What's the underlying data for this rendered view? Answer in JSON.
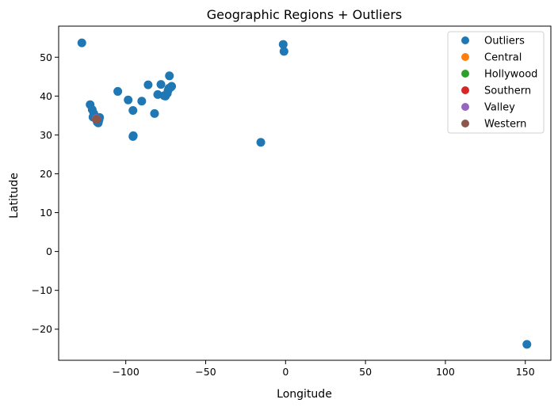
{
  "chart_data": {
    "type": "scatter",
    "title": "Geographic Regions + Outliers",
    "xlabel": "Longitude",
    "ylabel": "Latitude",
    "xlim": [
      -142,
      166
    ],
    "ylim": [
      -28,
      58
    ],
    "x_ticks": [
      -100,
      -50,
      0,
      50,
      100,
      150
    ],
    "y_ticks": [
      -20,
      -10,
      0,
      10,
      20,
      30,
      40,
      50
    ],
    "x_tick_labels": [
      "−100",
      "−50",
      "0",
      "50",
      "100",
      "150"
    ],
    "y_tick_labels": [
      "−20",
      "−10",
      "0",
      "10",
      "20",
      "30",
      "40",
      "50"
    ],
    "grid": false,
    "legend_position": "top-right",
    "series": [
      {
        "name": "Outliers",
        "color": "#1f77b4",
        "points": [
          [
            -127.5,
            53.7
          ],
          [
            -122.3,
            37.8
          ],
          [
            -121.0,
            36.5
          ],
          [
            -120.0,
            35.5
          ],
          [
            -119.5,
            34.8
          ],
          [
            -119.0,
            34.3
          ],
          [
            -118.5,
            34.0
          ],
          [
            -118.0,
            33.7
          ],
          [
            -117.5,
            33.5
          ],
          [
            -117.2,
            33.1
          ],
          [
            -116.8,
            33.8
          ],
          [
            -117.0,
            34.3
          ],
          [
            -116.4,
            34.5
          ],
          [
            -117.8,
            33.3
          ],
          [
            -120.5,
            34.6
          ],
          [
            -105.0,
            41.2
          ],
          [
            -98.5,
            39.0
          ],
          [
            -95.5,
            36.3
          ],
          [
            -95.5,
            29.6
          ],
          [
            -95.3,
            29.8
          ],
          [
            -90.0,
            38.7
          ],
          [
            -86.0,
            42.9
          ],
          [
            -82.0,
            35.5
          ],
          [
            -80.0,
            40.4
          ],
          [
            -78.0,
            43.0
          ],
          [
            -76.0,
            40.1
          ],
          [
            -75.2,
            40.0
          ],
          [
            -74.0,
            40.7
          ],
          [
            -73.5,
            41.5
          ],
          [
            -73.0,
            42.0
          ],
          [
            -72.7,
            45.2
          ],
          [
            -71.8,
            42.3
          ],
          [
            -71.3,
            42.5
          ],
          [
            -15.5,
            28.1
          ],
          [
            -1.5,
            53.3
          ],
          [
            -1.0,
            51.5
          ],
          [
            151.0,
            -23.9
          ]
        ]
      },
      {
        "name": "Central",
        "color": "#ff7f0e",
        "points": [
          [
            -118.3,
            34.05
          ]
        ]
      },
      {
        "name": "Hollywood",
        "color": "#2ca02c",
        "points": [
          [
            -118.33,
            34.1
          ]
        ]
      },
      {
        "name": "Southern",
        "color": "#d62728",
        "points": [
          [
            -118.28,
            34.0
          ]
        ]
      },
      {
        "name": "Valley",
        "color": "#9467bd",
        "points": [
          [
            -118.4,
            34.18
          ]
        ]
      },
      {
        "name": "Western",
        "color": "#8c564b",
        "points": [
          [
            -118.35,
            34.03
          ]
        ]
      }
    ]
  }
}
